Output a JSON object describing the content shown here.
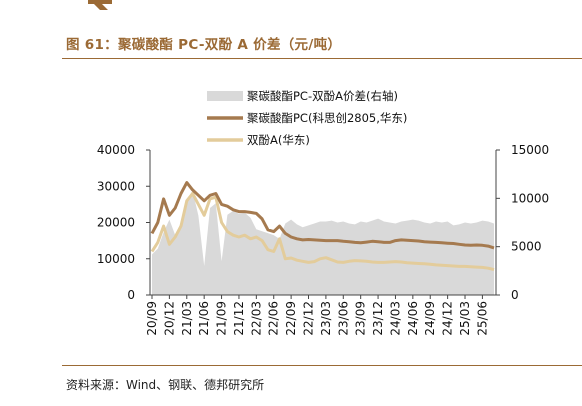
{
  "figure": {
    "title": "图 61：聚碳酸酯 PC-双酚 A 价差（元/吨）",
    "source": "资料来源：Wind、钢联、德邦研究所"
  },
  "colors": {
    "brand": "#9b6a35",
    "spread_area": "#d9d9d9",
    "pc_line": "#a57a4f",
    "bpa_line": "#e3cc9b"
  },
  "chart_data": {
    "type": "line",
    "x_ticks": [
      "20/09",
      "20/12",
      "21/03",
      "21/06",
      "21/09",
      "21/12",
      "22/03",
      "22/06",
      "22/09",
      "22/12",
      "23/03",
      "23/06",
      "23/09",
      "23/12",
      "24/03",
      "24/06",
      "24/09",
      "24/12",
      "25/03",
      "25/06"
    ],
    "x": [
      "20/09",
      "20/10",
      "20/11",
      "20/12",
      "21/01",
      "21/02",
      "21/03",
      "21/04",
      "21/05",
      "21/06",
      "21/07",
      "21/08",
      "21/09",
      "21/10",
      "21/11",
      "21/12",
      "22/01",
      "22/02",
      "22/03",
      "22/04",
      "22/05",
      "22/06",
      "22/07",
      "22/08",
      "22/09",
      "22/10",
      "22/11",
      "22/12",
      "23/01",
      "23/02",
      "23/03",
      "23/04",
      "23/05",
      "23/06",
      "23/07",
      "23/08",
      "23/09",
      "23/10",
      "23/11",
      "23/12",
      "24/01",
      "24/02",
      "24/03",
      "24/04",
      "24/05",
      "24/06",
      "24/07",
      "24/08",
      "24/09",
      "24/10",
      "24/11",
      "24/12",
      "25/01",
      "25/02",
      "25/03",
      "25/04",
      "25/05",
      "25/06",
      "25/07",
      "25/08"
    ],
    "y_left": {
      "min": 0,
      "max": 40000,
      "ticks": [
        0,
        10000,
        20000,
        30000,
        40000
      ]
    },
    "y_right": {
      "min": 0,
      "max": 15000,
      "ticks": [
        0,
        5000,
        10000,
        15000
      ]
    },
    "series": [
      {
        "name": "聚碳酸酯PC-双酚A价差(右轴)",
        "axis": "right",
        "kind": "area",
        "values": [
          4200,
          4800,
          6500,
          7800,
          6200,
          7500,
          9800,
          10800,
          8200,
          3000,
          9000,
          9500,
          3500,
          8300,
          8700,
          8400,
          8500,
          8000,
          6800,
          6600,
          6400,
          6200,
          5800,
          7400,
          7800,
          7300,
          7000,
          7200,
          7400,
          7600,
          7600,
          7700,
          7500,
          7600,
          7400,
          7300,
          7600,
          7500,
          7700,
          7900,
          7600,
          7500,
          7400,
          7600,
          7700,
          7800,
          7700,
          7500,
          7400,
          7600,
          7500,
          7600,
          7200,
          7300,
          7500,
          7400,
          7500,
          7700,
          7600,
          7400
        ]
      },
      {
        "name": "聚碳酸酯PC(科思创2805,华东)",
        "axis": "left",
        "kind": "line",
        "values": [
          17000,
          20000,
          26500,
          22000,
          24000,
          28000,
          31000,
          29000,
          27500,
          26000,
          27500,
          28000,
          25000,
          24500,
          23500,
          23000,
          23000,
          22800,
          22500,
          21000,
          18000,
          17500,
          19000,
          17000,
          16000,
          15500,
          15200,
          15300,
          15200,
          15100,
          15000,
          15000,
          15000,
          14800,
          14700,
          14500,
          14400,
          14600,
          14800,
          14700,
          14500,
          14500,
          15000,
          15200,
          15100,
          15000,
          14900,
          14700,
          14600,
          14500,
          14400,
          14300,
          14200,
          14000,
          13800,
          13700,
          13800,
          13700,
          13500,
          13000
        ]
      },
      {
        "name": "双酚A(华东)",
        "axis": "left",
        "kind": "line",
        "values": [
          12000,
          14500,
          19000,
          14000,
          16000,
          19000,
          26000,
          28000,
          25000,
          22000,
          26500,
          27000,
          20000,
          17500,
          16500,
          16000,
          16500,
          15500,
          16000,
          15000,
          12500,
          12000,
          15500,
          10000,
          10200,
          9600,
          9300,
          9000,
          9200,
          10000,
          10300,
          9700,
          9100,
          9000,
          9300,
          9500,
          9400,
          9300,
          9100,
          9000,
          9000,
          9100,
          9200,
          9100,
          8900,
          8800,
          8700,
          8600,
          8500,
          8300,
          8200,
          8100,
          8000,
          7900,
          7900,
          7800,
          7700,
          7600,
          7400,
          7000
        ]
      }
    ],
    "legend_position": "top-right"
  }
}
